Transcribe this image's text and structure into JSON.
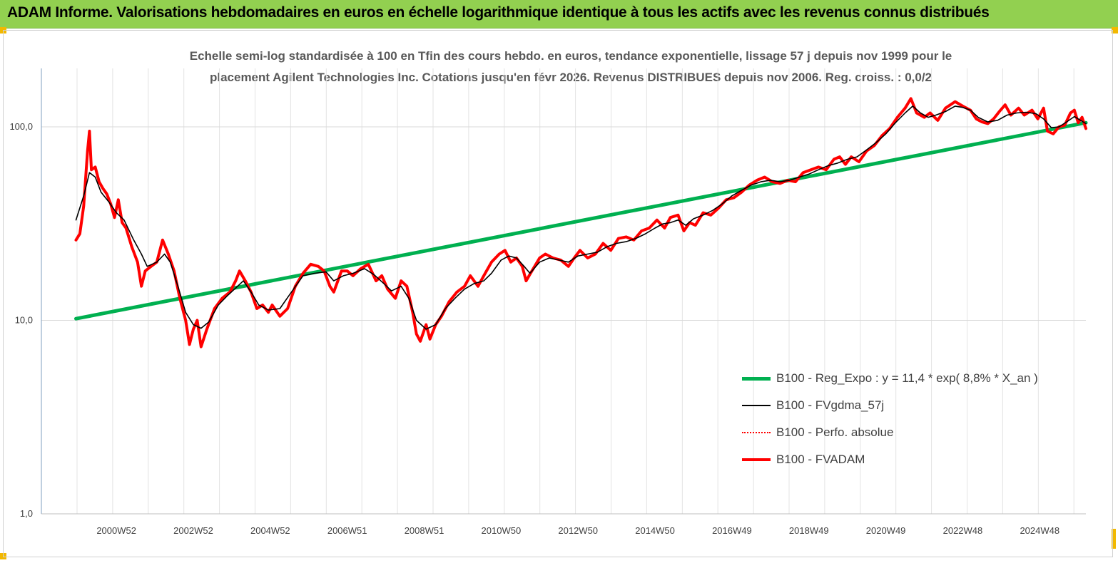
{
  "header": {
    "title": "ADAM Informe. Valorisations hebdomadaires en euros en échelle logarithmique identique à tous les actifs avec les revenus connus distribués"
  },
  "chart_data": {
    "type": "line",
    "subtitle_line1": "Echelle semi-log standardisée à 100 en Tfin des cours hebdo. en euros, tendance exponentielle, lissage 57 j depuis nov 1999 pour le",
    "subtitle_line2": "placement Agilent Technologies Inc. Cotations jusqu'en févr 2026. Revenus DISTRIBUES depuis nov 2006. Reg. croiss. : 0,0/2",
    "y_scale": "log",
    "ylim": [
      1,
      180
    ],
    "y_ticks": [
      {
        "value": 1,
        "label": "1,0"
      },
      {
        "value": 10,
        "label": "10,0"
      },
      {
        "value": 100,
        "label": "100,0"
      }
    ],
    "xlim": [
      1999.0,
      2026.15
    ],
    "x_ticks": [
      {
        "x": 2000.95,
        "label": "2000W52"
      },
      {
        "x": 2002.95,
        "label": "2002W52"
      },
      {
        "x": 2004.95,
        "label": "2004W52"
      },
      {
        "x": 2006.95,
        "label": "2006W51"
      },
      {
        "x": 2008.95,
        "label": "2008W51"
      },
      {
        "x": 2010.95,
        "label": "2010W50"
      },
      {
        "x": 2012.95,
        "label": "2012W50"
      },
      {
        "x": 2014.95,
        "label": "2014W50"
      },
      {
        "x": 2016.95,
        "label": "2016W49"
      },
      {
        "x": 2018.95,
        "label": "2018W49"
      },
      {
        "x": 2020.95,
        "label": "2020W49"
      },
      {
        "x": 2022.95,
        "label": "2022W48"
      },
      {
        "x": 2024.95,
        "label": "2024W48"
      }
    ],
    "legend_position": "right",
    "series": [
      {
        "name": "B100 - Reg_Expo : y = 11,4 * exp( 8,8% * X_an )",
        "color": "#00b050",
        "style": "thick",
        "points": [
          [
            1999.9,
            10.2
          ],
          [
            2026.15,
            105
          ]
        ]
      },
      {
        "name": "B100 - FVgdma_57j",
        "color": "#000000",
        "style": "thin",
        "points": [
          [
            1999.9,
            33
          ],
          [
            2000.1,
            44
          ],
          [
            2000.25,
            58
          ],
          [
            2000.4,
            55
          ],
          [
            2000.55,
            46
          ],
          [
            2000.75,
            41
          ],
          [
            2000.95,
            36
          ],
          [
            2001.15,
            33
          ],
          [
            2001.4,
            26
          ],
          [
            2001.6,
            22
          ],
          [
            2001.75,
            19
          ],
          [
            2002.0,
            20
          ],
          [
            2002.2,
            22
          ],
          [
            2002.35,
            20
          ],
          [
            2002.55,
            15
          ],
          [
            2002.75,
            11
          ],
          [
            2002.95,
            9.5
          ],
          [
            2003.15,
            9.1
          ],
          [
            2003.35,
            9.8
          ],
          [
            2003.6,
            12
          ],
          [
            2003.85,
            13.5
          ],
          [
            2004.1,
            15
          ],
          [
            2004.25,
            16
          ],
          [
            2004.45,
            14
          ],
          [
            2004.65,
            12
          ],
          [
            2004.9,
            11.3
          ],
          [
            2005.2,
            11.5
          ],
          [
            2005.5,
            14
          ],
          [
            2005.8,
            17
          ],
          [
            2006.1,
            17.5
          ],
          [
            2006.4,
            17.8
          ],
          [
            2006.6,
            16
          ],
          [
            2006.85,
            17
          ],
          [
            2007.1,
            17.5
          ],
          [
            2007.4,
            18.5
          ],
          [
            2007.65,
            17.2
          ],
          [
            2007.9,
            15.5
          ],
          [
            2008.1,
            14.2
          ],
          [
            2008.35,
            15
          ],
          [
            2008.55,
            13
          ],
          [
            2008.75,
            10
          ],
          [
            2009.0,
            9
          ],
          [
            2009.25,
            9.5
          ],
          [
            2009.5,
            11.5
          ],
          [
            2009.75,
            13
          ],
          [
            2010.0,
            14.5
          ],
          [
            2010.25,
            15.5
          ],
          [
            2010.5,
            16
          ],
          [
            2010.7,
            17.5
          ],
          [
            2010.95,
            20.5
          ],
          [
            2011.15,
            21.5
          ],
          [
            2011.35,
            21
          ],
          [
            2011.55,
            19
          ],
          [
            2011.7,
            17.5
          ],
          [
            2011.95,
            20
          ],
          [
            2012.2,
            21
          ],
          [
            2012.45,
            20.5
          ],
          [
            2012.7,
            20
          ],
          [
            2012.95,
            21.5
          ],
          [
            2013.2,
            22
          ],
          [
            2013.45,
            22.5
          ],
          [
            2013.7,
            24
          ],
          [
            2013.95,
            25
          ],
          [
            2014.2,
            25.5
          ],
          [
            2014.45,
            26.5
          ],
          [
            2014.7,
            28
          ],
          [
            2014.95,
            30
          ],
          [
            2015.15,
            31.5
          ],
          [
            2015.35,
            32
          ],
          [
            2015.55,
            33
          ],
          [
            2015.75,
            31
          ],
          [
            2015.95,
            33.5
          ],
          [
            2016.2,
            35
          ],
          [
            2016.45,
            37
          ],
          [
            2016.7,
            40
          ],
          [
            2016.95,
            44
          ],
          [
            2017.2,
            47
          ],
          [
            2017.45,
            50
          ],
          [
            2017.7,
            52
          ],
          [
            2017.95,
            53
          ],
          [
            2018.2,
            52
          ],
          [
            2018.45,
            53
          ],
          [
            2018.7,
            55
          ],
          [
            2018.95,
            57
          ],
          [
            2019.2,
            60
          ],
          [
            2019.45,
            63
          ],
          [
            2019.7,
            65
          ],
          [
            2019.95,
            68
          ],
          [
            2020.2,
            70
          ],
          [
            2020.45,
            76
          ],
          [
            2020.7,
            83
          ],
          [
            2020.95,
            92
          ],
          [
            2021.2,
            105
          ],
          [
            2021.45,
            118
          ],
          [
            2021.65,
            128
          ],
          [
            2021.85,
            118
          ],
          [
            2022.05,
            112
          ],
          [
            2022.25,
            115
          ],
          [
            2022.5,
            120
          ],
          [
            2022.75,
            128
          ],
          [
            2022.95,
            126
          ],
          [
            2023.15,
            122
          ],
          [
            2023.35,
            112
          ],
          [
            2023.6,
            106
          ],
          [
            2023.85,
            108
          ],
          [
            2024.1,
            115
          ],
          [
            2024.35,
            118
          ],
          [
            2024.6,
            119
          ],
          [
            2024.85,
            117
          ],
          [
            2025.05,
            110
          ],
          [
            2025.25,
            99
          ],
          [
            2025.45,
            100
          ],
          [
            2025.65,
            106
          ],
          [
            2025.85,
            113
          ],
          [
            2026.15,
            104
          ]
        ]
      },
      {
        "name": "B100 - Perfo. absolue",
        "color": "#ff0000",
        "style": "dotted",
        "points": []
      },
      {
        "name": "B100 - FVADAM",
        "color": "#ff0000",
        "style": "thick",
        "points": [
          [
            1999.9,
            26
          ],
          [
            2000.0,
            28
          ],
          [
            2000.1,
            39
          ],
          [
            2000.2,
            75
          ],
          [
            2000.25,
            95
          ],
          [
            2000.3,
            60
          ],
          [
            2000.4,
            62
          ],
          [
            2000.5,
            52
          ],
          [
            2000.6,
            48
          ],
          [
            2000.7,
            45
          ],
          [
            2000.8,
            40
          ],
          [
            2000.9,
            34
          ],
          [
            2001.0,
            42
          ],
          [
            2001.1,
            32
          ],
          [
            2001.2,
            30
          ],
          [
            2001.35,
            24
          ],
          [
            2001.5,
            20
          ],
          [
            2001.6,
            15
          ],
          [
            2001.7,
            18
          ],
          [
            2001.85,
            19
          ],
          [
            2002.0,
            20
          ],
          [
            2002.15,
            26
          ],
          [
            2002.3,
            22
          ],
          [
            2002.45,
            18
          ],
          [
            2002.6,
            13
          ],
          [
            2002.75,
            10
          ],
          [
            2002.85,
            7.5
          ],
          [
            2002.95,
            9
          ],
          [
            2003.05,
            10
          ],
          [
            2003.15,
            7.3
          ],
          [
            2003.3,
            9
          ],
          [
            2003.5,
            11.5
          ],
          [
            2003.7,
            13
          ],
          [
            2003.9,
            14
          ],
          [
            2004.05,
            16
          ],
          [
            2004.15,
            18
          ],
          [
            2004.3,
            16
          ],
          [
            2004.45,
            14
          ],
          [
            2004.6,
            11.5
          ],
          [
            2004.75,
            12
          ],
          [
            2004.9,
            11
          ],
          [
            2005.0,
            12
          ],
          [
            2005.2,
            10.5
          ],
          [
            2005.4,
            11.5
          ],
          [
            2005.6,
            15
          ],
          [
            2005.8,
            17.5
          ],
          [
            2006.0,
            19.5
          ],
          [
            2006.2,
            19
          ],
          [
            2006.35,
            18
          ],
          [
            2006.5,
            15
          ],
          [
            2006.6,
            14
          ],
          [
            2006.8,
            18
          ],
          [
            2006.95,
            18
          ],
          [
            2007.1,
            17
          ],
          [
            2007.3,
            18.5
          ],
          [
            2007.5,
            19.5
          ],
          [
            2007.7,
            16
          ],
          [
            2007.85,
            17
          ],
          [
            2008.0,
            14.5
          ],
          [
            2008.2,
            13
          ],
          [
            2008.35,
            16
          ],
          [
            2008.5,
            15
          ],
          [
            2008.65,
            11
          ],
          [
            2008.75,
            8.5
          ],
          [
            2008.85,
            7.8
          ],
          [
            2009.0,
            9.5
          ],
          [
            2009.1,
            8
          ],
          [
            2009.25,
            9.5
          ],
          [
            2009.4,
            10.5
          ],
          [
            2009.6,
            12.5
          ],
          [
            2009.8,
            14
          ],
          [
            2010.0,
            15
          ],
          [
            2010.15,
            17
          ],
          [
            2010.35,
            15
          ],
          [
            2010.5,
            17
          ],
          [
            2010.7,
            20
          ],
          [
            2010.9,
            22
          ],
          [
            2011.05,
            23
          ],
          [
            2011.2,
            20
          ],
          [
            2011.35,
            21
          ],
          [
            2011.5,
            19
          ],
          [
            2011.6,
            16
          ],
          [
            2011.75,
            18
          ],
          [
            2011.95,
            21
          ],
          [
            2012.1,
            22
          ],
          [
            2012.3,
            21
          ],
          [
            2012.5,
            20.5
          ],
          [
            2012.7,
            19
          ],
          [
            2012.85,
            21
          ],
          [
            2013.0,
            23
          ],
          [
            2013.2,
            21
          ],
          [
            2013.4,
            22
          ],
          [
            2013.6,
            25
          ],
          [
            2013.8,
            23
          ],
          [
            2014.0,
            26.5
          ],
          [
            2014.2,
            27
          ],
          [
            2014.4,
            26
          ],
          [
            2014.6,
            29
          ],
          [
            2014.8,
            30
          ],
          [
            2015.0,
            33
          ],
          [
            2015.2,
            30
          ],
          [
            2015.35,
            34
          ],
          [
            2015.55,
            35
          ],
          [
            2015.7,
            29
          ],
          [
            2015.85,
            32
          ],
          [
            2016.0,
            31
          ],
          [
            2016.2,
            36
          ],
          [
            2016.4,
            35
          ],
          [
            2016.6,
            38
          ],
          [
            2016.8,
            42
          ],
          [
            2017.0,
            43
          ],
          [
            2017.2,
            46
          ],
          [
            2017.4,
            50
          ],
          [
            2017.6,
            53
          ],
          [
            2017.8,
            55
          ],
          [
            2018.0,
            52
          ],
          [
            2018.2,
            51
          ],
          [
            2018.4,
            53
          ],
          [
            2018.6,
            52
          ],
          [
            2018.8,
            58
          ],
          [
            2019.0,
            60
          ],
          [
            2019.2,
            62
          ],
          [
            2019.4,
            60
          ],
          [
            2019.6,
            68
          ],
          [
            2019.75,
            70
          ],
          [
            2019.9,
            64
          ],
          [
            2020.05,
            70
          ],
          [
            2020.25,
            66
          ],
          [
            2020.45,
            75
          ],
          [
            2020.65,
            80
          ],
          [
            2020.85,
            90
          ],
          [
            2021.05,
            98
          ],
          [
            2021.25,
            112
          ],
          [
            2021.45,
            125
          ],
          [
            2021.6,
            140
          ],
          [
            2021.75,
            118
          ],
          [
            2021.95,
            112
          ],
          [
            2022.1,
            118
          ],
          [
            2022.3,
            108
          ],
          [
            2022.5,
            125
          ],
          [
            2022.75,
            135
          ],
          [
            2022.95,
            128
          ],
          [
            2023.15,
            122
          ],
          [
            2023.3,
            110
          ],
          [
            2023.45,
            106
          ],
          [
            2023.6,
            104
          ],
          [
            2023.75,
            110
          ],
          [
            2023.9,
            120
          ],
          [
            2024.05,
            130
          ],
          [
            2024.2,
            115
          ],
          [
            2024.4,
            125
          ],
          [
            2024.55,
            115
          ],
          [
            2024.75,
            122
          ],
          [
            2024.9,
            110
          ],
          [
            2025.05,
            125
          ],
          [
            2025.15,
            95
          ],
          [
            2025.3,
            92
          ],
          [
            2025.45,
            100
          ],
          [
            2025.6,
            102
          ],
          [
            2025.75,
            118
          ],
          [
            2025.85,
            122
          ],
          [
            2025.95,
            105
          ],
          [
            2026.05,
            112
          ],
          [
            2026.15,
            98
          ]
        ]
      }
    ]
  }
}
